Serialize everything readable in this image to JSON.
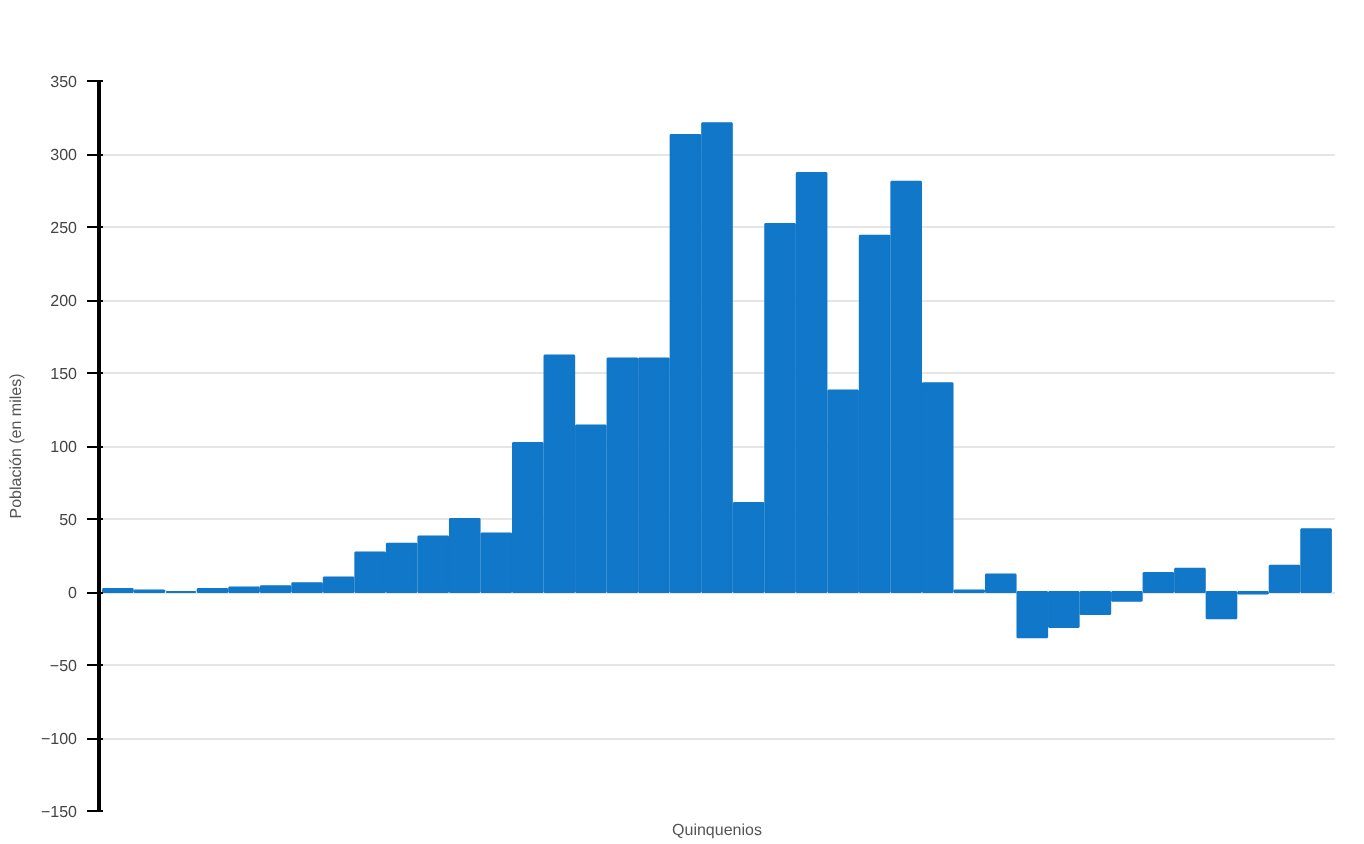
{
  "chart_data": {
    "type": "bar",
    "xlabel": "Quinquenios",
    "ylabel": "Población (en miles)",
    "categories": [
      null,
      null,
      null,
      null,
      null,
      null,
      null,
      null,
      null,
      null,
      null,
      null,
      null,
      null,
      null,
      null,
      null,
      null,
      null,
      null,
      null,
      null,
      null,
      null,
      null,
      null,
      null,
      null,
      null,
      null,
      null,
      null,
      null,
      null,
      null,
      null,
      null,
      null,
      null
    ],
    "values": [
      2,
      1,
      0,
      2,
      3,
      4,
      6,
      10,
      27,
      33,
      38,
      50,
      40,
      102,
      162,
      114,
      160,
      160,
      313,
      321,
      61,
      252,
      287,
      138,
      244,
      281,
      143,
      1,
      12,
      -31,
      -24,
      -15,
      -6,
      13,
      16,
      -18,
      -1,
      18,
      43
    ],
    "color": "#1177c8",
    "ylim": [
      -150,
      350
    ],
    "yticks": [
      -150,
      -100,
      -50,
      0,
      50,
      100,
      150,
      200,
      250,
      300,
      350
    ],
    "grid": "y"
  }
}
